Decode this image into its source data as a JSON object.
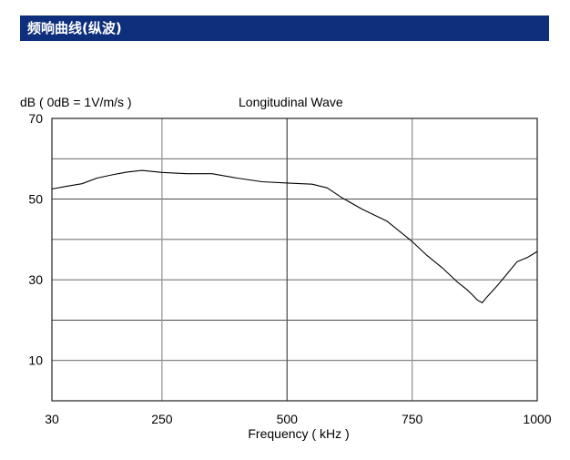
{
  "header": {
    "title": "频响曲线(纵波)",
    "color": "#0e2f7c"
  },
  "chart_data": {
    "type": "line",
    "title": "Longitudinal Wave",
    "ylabel": "dB ( 0dB = 1V/m/s )",
    "xlabel": "Frequency ( kHz )",
    "x_ticks": [
      {
        "label": "30",
        "value": 30
      },
      {
        "label": "250",
        "value": 250
      },
      {
        "label": "500",
        "value": 500
      },
      {
        "label": "750",
        "value": 750
      },
      {
        "label": "1000",
        "value": 1000
      }
    ],
    "y_ticks": [
      {
        "label": "70",
        "value": 70
      },
      {
        "label": "50",
        "value": 50
      },
      {
        "label": "30",
        "value": 30
      },
      {
        "label": "10",
        "value": 10
      }
    ],
    "xlim": [
      30,
      1000
    ],
    "ylim": [
      0,
      70
    ],
    "grid": true,
    "series": [
      {
        "color": "#000000",
        "x": [
          30,
          60,
          90,
          120,
          150,
          180,
          210,
          250,
          300,
          350,
          400,
          450,
          500,
          550,
          580,
          610,
          650,
          700,
          750,
          780,
          810,
          840,
          860,
          870,
          880,
          890,
          900,
          920,
          940,
          960,
          980,
          1000
        ],
        "y": [
          52.5,
          53.2,
          53.8,
          55.2,
          56.0,
          56.7,
          57.1,
          56.6,
          56.3,
          56.3,
          55.2,
          54.3,
          54.0,
          53.7,
          52.8,
          50.3,
          47.5,
          44.5,
          39.5,
          36.0,
          33.0,
          29.5,
          27.5,
          26.3,
          25.0,
          24.3,
          25.8,
          28.5,
          31.5,
          34.5,
          35.5,
          37.0
        ]
      }
    ]
  }
}
